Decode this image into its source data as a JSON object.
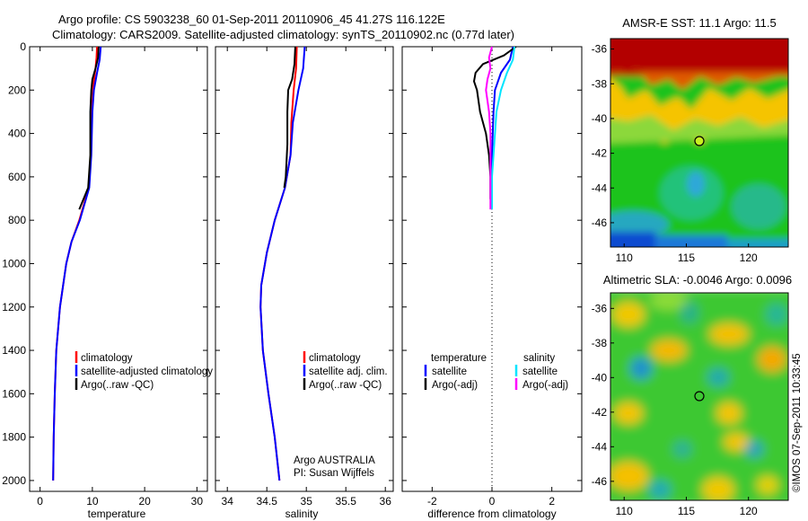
{
  "header": {
    "line1": "Argo profile: CS 5903238_60 01-Sep-2011 20110906_45 41.27S 116.122E",
    "line2": "Climatology: CARS2009. Satellite-adjusted climatology: synTS_20110902.nc (0.77d later)"
  },
  "colors": {
    "climatology": "#ff0000",
    "satellite": "#0000ff",
    "argo": "#000000",
    "sal_satellite": "#00e5ff",
    "sal_argo": "#ff00ff"
  },
  "chart_data": [
    {
      "type": "line",
      "panel": "temperature",
      "xlabel": "temperature",
      "ylabel": "",
      "xlim": [
        -2,
        32
      ],
      "ylim": [
        2050,
        0
      ],
      "xticks": [
        0,
        10,
        20,
        30
      ],
      "yticks": [
        0,
        200,
        400,
        600,
        800,
        1000,
        1200,
        1400,
        1600,
        1800,
        2000
      ],
      "legend": [
        "climatology",
        "satellite-adjusted climatology",
        "Argo(..raw -QC)"
      ],
      "series": [
        {
          "name": "climatology",
          "color": "#ff0000",
          "points": [
            [
              10.9,
              0
            ],
            [
              10.8,
              50
            ],
            [
              10.6,
              100
            ],
            [
              10.2,
              180
            ],
            [
              9.9,
              300
            ],
            [
              9.7,
              500
            ],
            [
              9.3,
              650
            ],
            [
              7.5,
              800
            ],
            [
              6.0,
              900
            ],
            [
              5.0,
              1000
            ],
            [
              3.8,
              1200
            ],
            [
              3.1,
              1400
            ],
            [
              2.8,
              1600
            ],
            [
              2.6,
              1800
            ],
            [
              2.5,
              2000
            ]
          ]
        },
        {
          "name": "satellite-adjusted climatology",
          "color": "#0000ff",
          "points": [
            [
              11.6,
              0
            ],
            [
              11.4,
              60
            ],
            [
              10.9,
              120
            ],
            [
              10.3,
              200
            ],
            [
              10.0,
              300
            ],
            [
              9.8,
              500
            ],
            [
              9.4,
              650
            ],
            [
              7.6,
              800
            ],
            [
              6.0,
              900
            ],
            [
              5.0,
              1000
            ],
            [
              3.8,
              1200
            ],
            [
              3.1,
              1400
            ],
            [
              2.8,
              1600
            ],
            [
              2.6,
              1800
            ],
            [
              2.5,
              2000
            ]
          ]
        },
        {
          "name": "Argo(..raw -QC)",
          "color": "#000000",
          "points": [
            [
              11.2,
              0
            ],
            [
              11.1,
              50
            ],
            [
              10.6,
              100
            ],
            [
              10.0,
              150
            ],
            [
              9.8,
              200
            ],
            [
              9.6,
              300
            ],
            [
              9.6,
              500
            ],
            [
              9.2,
              650
            ],
            [
              7.5,
              750
            ]
          ]
        }
      ]
    },
    {
      "type": "line",
      "panel": "salinity",
      "xlabel": "salinity",
      "ylabel": "",
      "xlim": [
        33.85,
        36.1
      ],
      "ylim": [
        2050,
        0
      ],
      "xticks": [
        34,
        34.5,
        35,
        35.5,
        36
      ],
      "yticks": [
        0,
        200,
        400,
        600,
        800,
        1000,
        1200,
        1400,
        1600,
        1800,
        2000
      ],
      "legend": [
        "climatology",
        "satellite adj. clim.",
        "Argo(..raw -QC)"
      ],
      "annotations": [
        "Argo AUSTRALIA",
        "PI: Susan Wijffels"
      ],
      "series": [
        {
          "name": "climatology",
          "color": "#ff0000",
          "points": [
            [
              34.88,
              0
            ],
            [
              34.87,
              100
            ],
            [
              34.84,
              200
            ],
            [
              34.81,
              350
            ],
            [
              34.8,
              500
            ],
            [
              34.73,
              650
            ],
            [
              34.6,
              800
            ],
            [
              34.5,
              950
            ],
            [
              34.43,
              1100
            ],
            [
              34.42,
              1200
            ],
            [
              34.45,
              1400
            ],
            [
              34.52,
              1600
            ],
            [
              34.6,
              1800
            ],
            [
              34.66,
              2000
            ]
          ]
        },
        {
          "name": "satellite adj. clim.",
          "color": "#0000ff",
          "points": [
            [
              34.98,
              0
            ],
            [
              34.96,
              100
            ],
            [
              34.9,
              200
            ],
            [
              34.83,
              350
            ],
            [
              34.8,
              500
            ],
            [
              34.73,
              650
            ],
            [
              34.6,
              800
            ],
            [
              34.5,
              950
            ],
            [
              34.43,
              1100
            ],
            [
              34.42,
              1200
            ],
            [
              34.45,
              1400
            ],
            [
              34.52,
              1600
            ],
            [
              34.6,
              1800
            ],
            [
              34.66,
              2000
            ]
          ]
        },
        {
          "name": "Argo(..raw -QC)",
          "color": "#000000",
          "points": [
            [
              34.86,
              0
            ],
            [
              34.85,
              80
            ],
            [
              34.82,
              150
            ],
            [
              34.77,
              200
            ],
            [
              34.76,
              300
            ],
            [
              34.76,
              450
            ],
            [
              34.74,
              600
            ],
            [
              34.72,
              650
            ]
          ]
        }
      ]
    },
    {
      "type": "line",
      "panel": "difference",
      "xlabel": "difference from climatology",
      "ylabel": "",
      "xlim": [
        -3,
        3
      ],
      "ylim": [
        2050,
        0
      ],
      "xticks": [
        -2,
        0,
        2
      ],
      "legend_titles": [
        "temperature",
        "salinity"
      ],
      "legend": [
        "satellite",
        "Argo(-adj)",
        "satellite",
        "Argo(-adj)"
      ],
      "series": [
        {
          "name": "satellite",
          "color": "#0000ff",
          "points": [
            [
              0.7,
              0
            ],
            [
              0.6,
              60
            ],
            [
              0.3,
              120
            ],
            [
              0.1,
              200
            ],
            [
              0.05,
              300
            ],
            [
              0.0,
              500
            ],
            [
              0.0,
              600
            ],
            [
              0.0,
              750
            ]
          ]
        },
        {
          "name": "Argo(-adj)",
          "color": "#000000",
          "points": [
            [
              0.8,
              0
            ],
            [
              0.4,
              40
            ],
            [
              -0.3,
              80
            ],
            [
              -0.55,
              120
            ],
            [
              -0.6,
              160
            ],
            [
              -0.5,
              200
            ],
            [
              -0.4,
              300
            ],
            [
              -0.2,
              400
            ],
            [
              -0.1,
              500
            ],
            [
              -0.05,
              600
            ],
            [
              -0.05,
              700
            ],
            [
              0.0,
              750
            ]
          ]
        },
        {
          "name": "satellite",
          "color": "#00e5ff",
          "points": [
            [
              0.75,
              0
            ],
            [
              0.7,
              60
            ],
            [
              0.5,
              120
            ],
            [
              0.3,
              200
            ],
            [
              0.15,
              300
            ],
            [
              0.05,
              500
            ],
            [
              0.0,
              600
            ],
            [
              0.0,
              750
            ]
          ]
        },
        {
          "name": "Argo(-adj)",
          "color": "#ff00ff",
          "points": [
            [
              0.0,
              0
            ],
            [
              -0.1,
              50
            ],
            [
              -0.05,
              100
            ],
            [
              -0.15,
              150
            ],
            [
              -0.2,
              200
            ],
            [
              -0.1,
              300
            ],
            [
              -0.05,
              400
            ],
            [
              -0.05,
              500
            ],
            [
              -0.05,
              600
            ],
            [
              -0.05,
              750
            ]
          ]
        }
      ],
      "argo_position_marker": [
        116.122,
        -41.27
      ]
    },
    {
      "type": "heatmap",
      "panel": "sst_map",
      "title": "AMSR-E SST: 11.1  Argo: 11.5",
      "xlim": [
        108.9,
        123.2
      ],
      "ylim": [
        -47.4,
        -35.4
      ],
      "xticks": [
        110,
        115,
        120
      ],
      "yticks": [
        -36,
        -38,
        -40,
        -42,
        -44,
        -46
      ]
    },
    {
      "type": "heatmap",
      "panel": "sla_map",
      "title": "Altimetric SLA: -0.0046  Argo: 0.0096",
      "xlim": [
        108.9,
        123.2
      ],
      "ylim": [
        -47.1,
        -35.1
      ],
      "xticks": [
        110,
        115,
        120
      ],
      "yticks": [
        -36,
        -38,
        -40,
        -42,
        -44,
        -46
      ]
    }
  ],
  "footer_credit": "©IMOS 07-Sep-2011 10:33:45"
}
